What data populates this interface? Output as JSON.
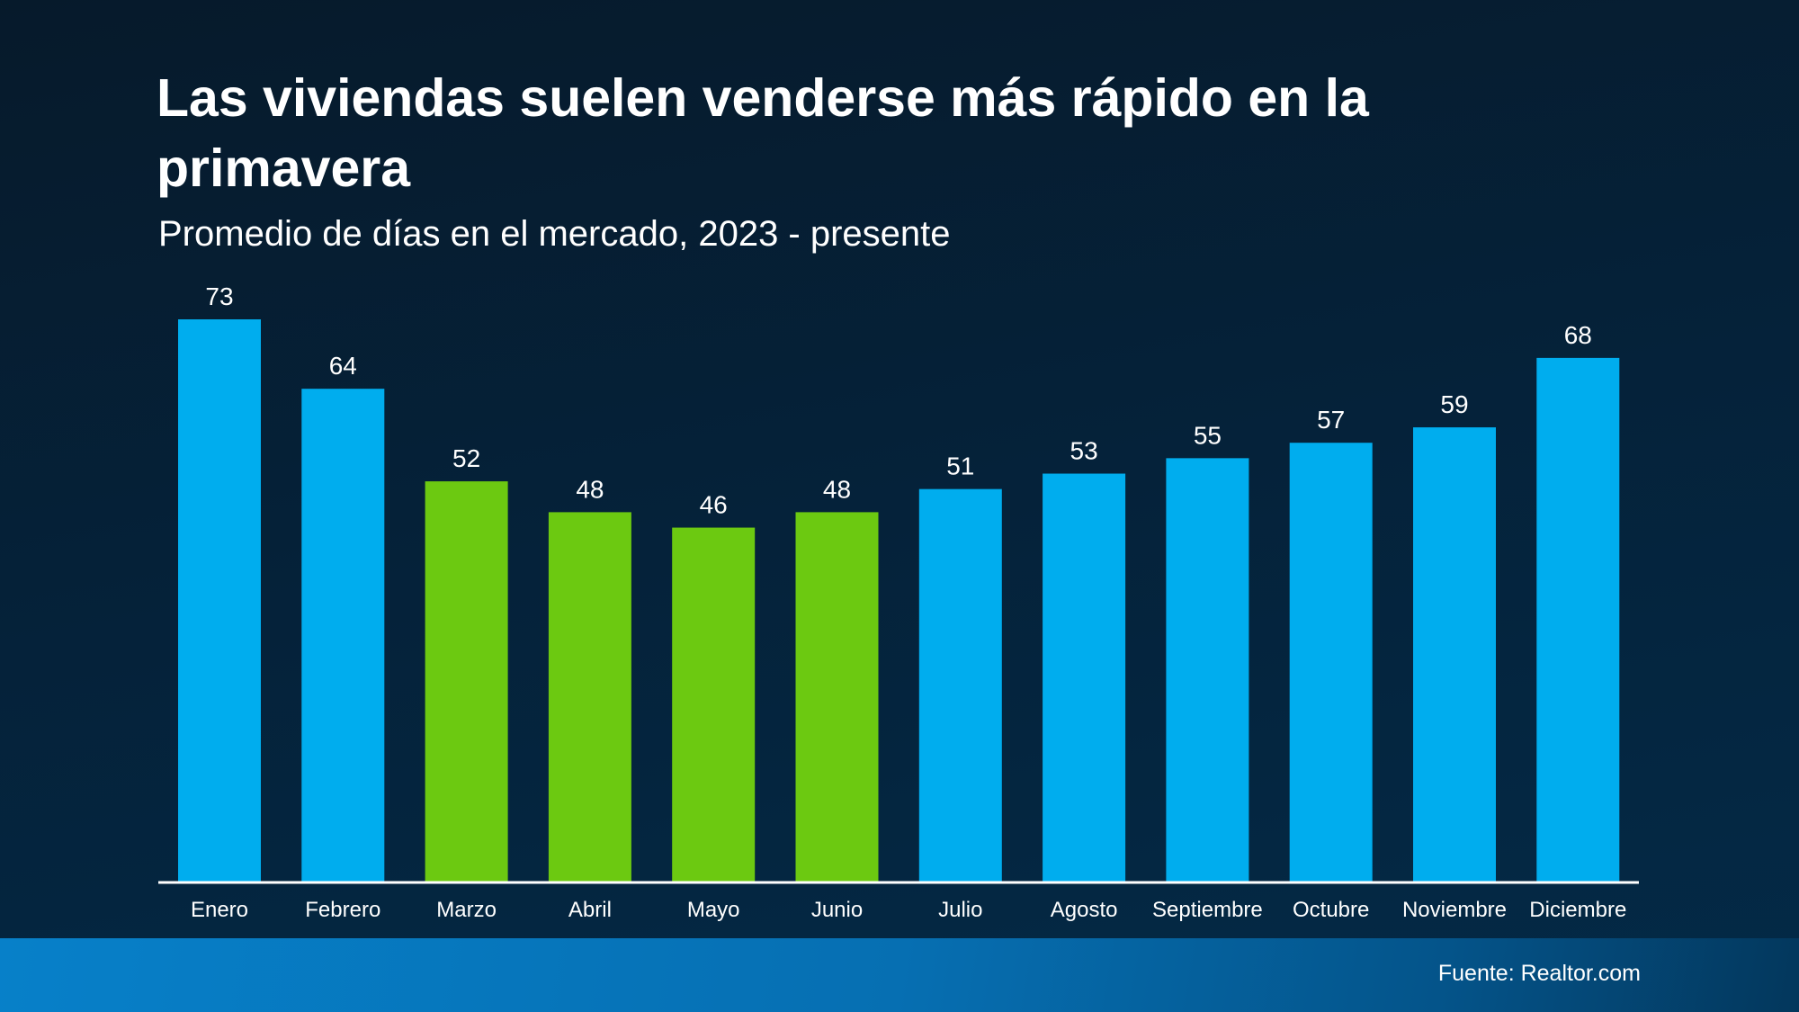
{
  "chart_data": {
    "type": "bar",
    "title": "Las viviendas suelen venderse más rápido en la primavera",
    "subtitle": "Promedio de días en el mercado, 2023 - presente",
    "categories": [
      "Enero",
      "Febrero",
      "Marzo",
      "Abril",
      "Mayo",
      "Junio",
      "Julio",
      "Agosto",
      "Septiembre",
      "Octubre",
      "Noviembre",
      "Diciembre"
    ],
    "values": [
      73,
      64,
      52,
      48,
      46,
      48,
      51,
      53,
      55,
      57,
      59,
      68
    ],
    "highlighted": [
      false,
      false,
      true,
      true,
      true,
      true,
      false,
      false,
      false,
      false,
      false,
      false
    ],
    "colors": {
      "default": "#00adee",
      "highlight": "#6cc911",
      "background": "#061f33",
      "axis": "#ffffff",
      "text": "#ffffff"
    },
    "ylim": [
      0,
      73
    ],
    "grid": false,
    "data_labels": true
  },
  "source": "Fuente: Realtor.com"
}
